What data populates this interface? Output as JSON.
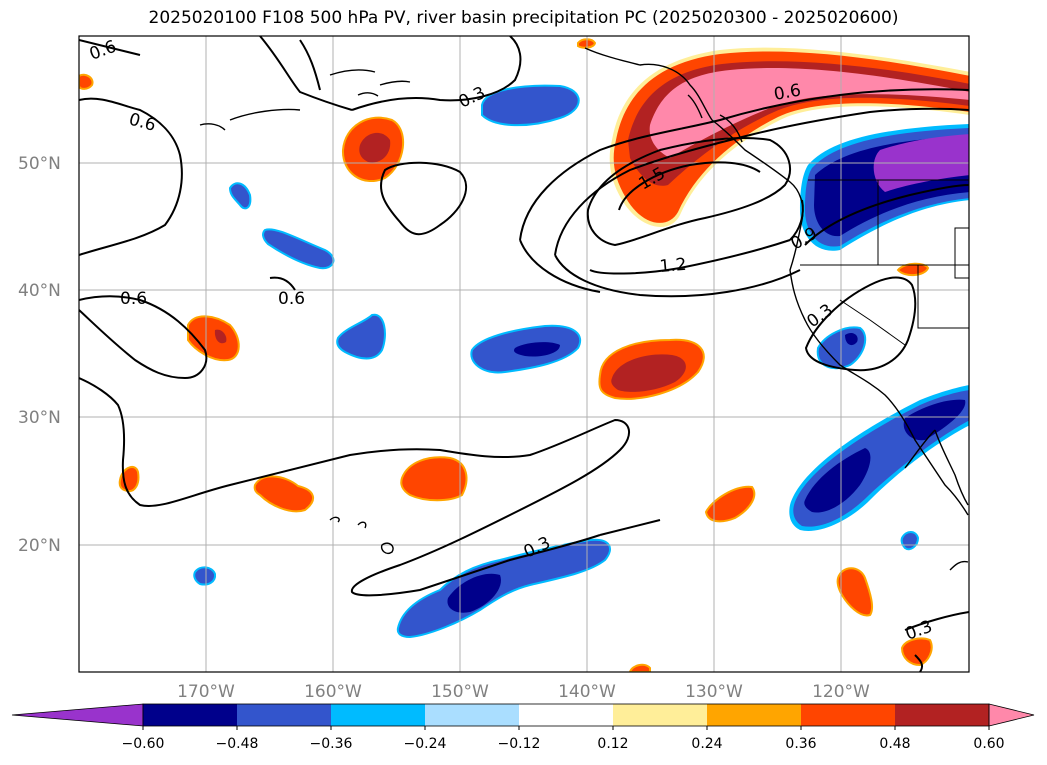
{
  "title": "2025020100 F108 500 hPa PV, river basin precipitation PC (2025020300 - 2025020600)",
  "map": {
    "lat_labels": [
      "50°N",
      "40°N",
      "30°N",
      "20°N"
    ],
    "lon_labels": [
      "170°W",
      "160°W",
      "150°W",
      "140°W",
      "130°W",
      "120°W"
    ]
  },
  "contour_labels": [
    "0.6",
    "0.6",
    "0.3",
    "0.6",
    "0.6",
    "0.6",
    "1.5",
    "1.2",
    "0.9",
    "0.3",
    "0.3",
    "0.3"
  ],
  "colorbar": {
    "ticks": [
      "−0.60",
      "−0.48",
      "−0.36",
      "−0.24",
      "−0.12",
      "0.12",
      "0.24",
      "0.36",
      "0.48",
      "0.60"
    ],
    "colors": [
      "#9933cc",
      "#00008b",
      "#3355cc",
      "#00bbff",
      "#aadeff",
      "#ffffff",
      "#ffee99",
      "#ffa500",
      "#ff4500",
      "#b22222",
      "#ff88aa"
    ]
  }
}
